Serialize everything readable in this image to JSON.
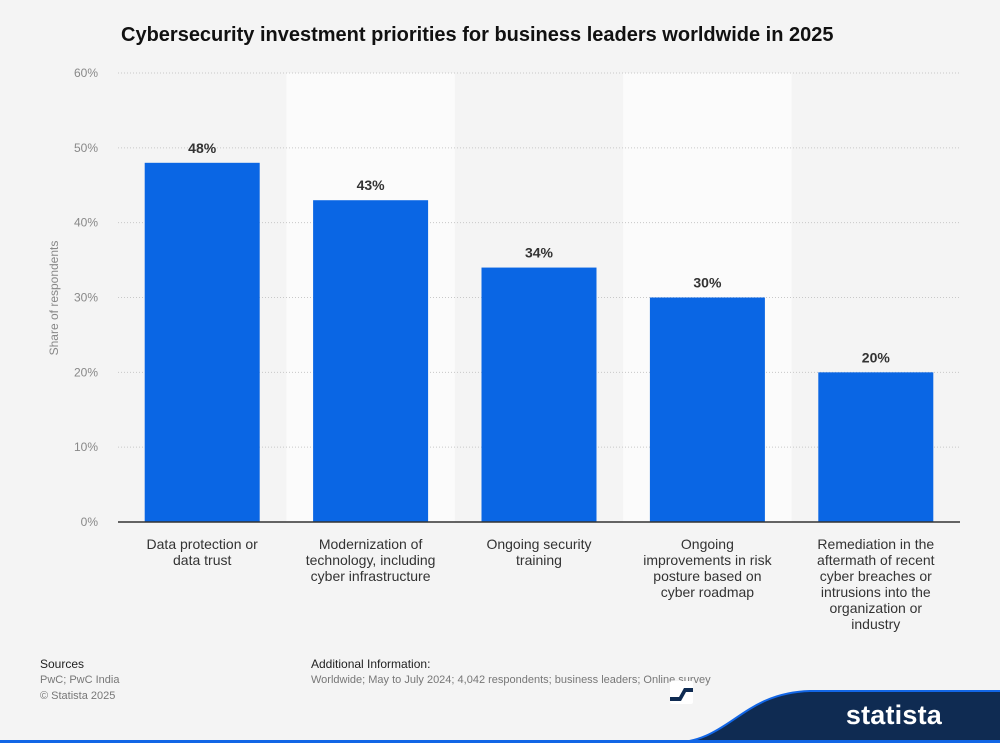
{
  "chart_data": {
    "type": "bar",
    "title": "Cybersecurity investment priorities for business leaders worldwide in 2025",
    "ylabel": "Share of respondents",
    "xlabel": "",
    "ylim": [
      0,
      60
    ],
    "yticks": [
      0,
      10,
      20,
      30,
      40,
      50,
      60
    ],
    "ytick_labels": [
      "0%",
      "10%",
      "20%",
      "30%",
      "40%",
      "50%",
      "60%"
    ],
    "categories": [
      [
        "Data protection or",
        "data trust"
      ],
      [
        "Modernization of",
        "technology, including",
        "cyber infrastructure"
      ],
      [
        "Ongoing security",
        "training"
      ],
      [
        "Ongoing",
        "improvements in risk",
        "posture based on",
        "cyber roadmap"
      ],
      [
        "Remediation in the",
        "aftermath of recent",
        "cyber breaches or",
        "intrusions into the",
        "organization or",
        "industry"
      ]
    ],
    "values": [
      48,
      43,
      34,
      30,
      20
    ],
    "value_labels": [
      "48%",
      "43%",
      "34%",
      "30%",
      "20%"
    ],
    "bar_color": "#0a66e4",
    "grid": true
  },
  "footer": {
    "sources_heading": "Sources",
    "sources_line1": "PwC; PwC India",
    "sources_line2": "© Statista 2025",
    "additional_heading": "Additional Information:",
    "additional_text": "Worldwide; May to July 2024; 4,042 respondents; business leaders; Online survey"
  },
  "brand": {
    "name": "statista",
    "color": "#0f2b52"
  }
}
